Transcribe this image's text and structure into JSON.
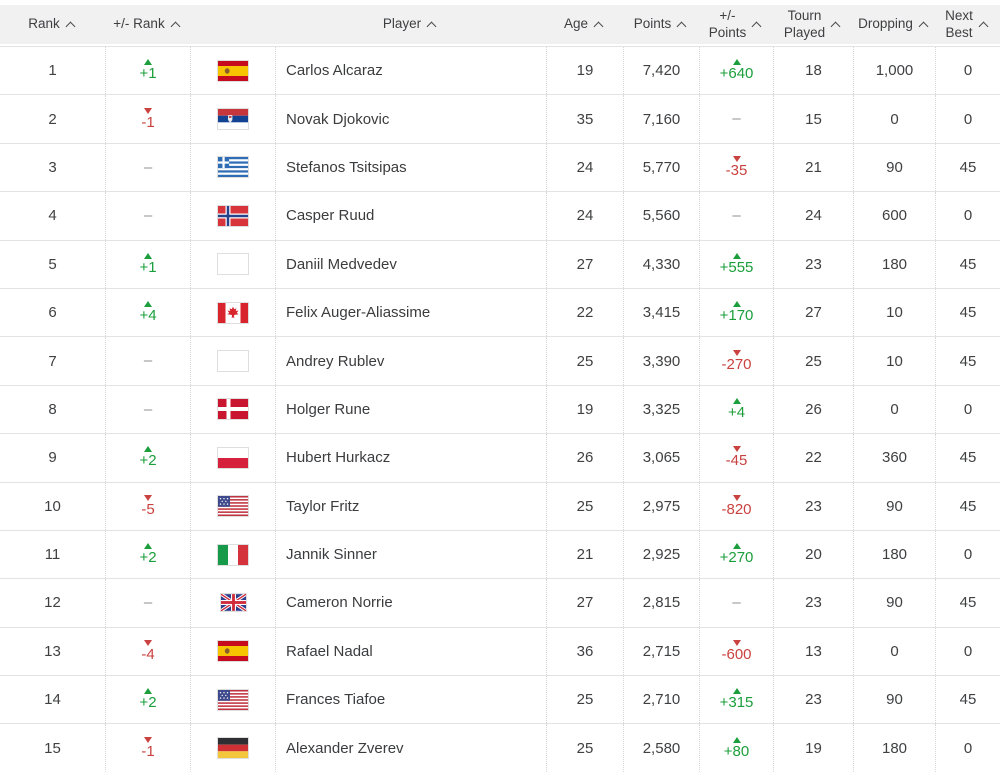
{
  "colors": {
    "green": "#1b9e3b",
    "red": "#c9423f",
    "text": "#3f4042",
    "muted": "#8f8f92",
    "hairline": "#e3e3e5",
    "dotted": "#d7d7da",
    "header_bg": "#f1f1f2",
    "header_text": "#3e3f41"
  },
  "table": {
    "columns": [
      {
        "key": "rank",
        "label": "Rank",
        "col": 1
      },
      {
        "key": "rank_change",
        "label": "+/- Rank",
        "col": 2
      },
      {
        "key": "player",
        "label": "Player",
        "col": 4
      },
      {
        "key": "age",
        "label": "Age",
        "col": 5
      },
      {
        "key": "points",
        "label": "Points",
        "col": 6
      },
      {
        "key": "points_change",
        "label": "+/-\nPoints",
        "col": 7
      },
      {
        "key": "tourn_played",
        "label": "Tourn\nPlayed",
        "col": 8
      },
      {
        "key": "dropping",
        "label": "Dropping",
        "col": 9
      },
      {
        "key": "next_best",
        "label": "Next\nBest",
        "col": 10
      }
    ],
    "rows": [
      {
        "rank": "1",
        "rank_change": {
          "dir": "up",
          "value": "+1"
        },
        "country": "ES",
        "player": "Carlos Alcaraz",
        "age": "19",
        "points": "7,420",
        "points_change": {
          "dir": "up",
          "value": "+640"
        },
        "tourn_played": "18",
        "dropping": "1,000",
        "next_best": "0"
      },
      {
        "rank": "2",
        "rank_change": {
          "dir": "down",
          "value": "-1"
        },
        "country": "RS",
        "player": "Novak Djokovic",
        "age": "35",
        "points": "7,160",
        "points_change": {
          "dir": "none",
          "value": "–"
        },
        "tourn_played": "15",
        "dropping": "0",
        "next_best": "0"
      },
      {
        "rank": "3",
        "rank_change": {
          "dir": "none",
          "value": "–"
        },
        "country": "GR",
        "player": "Stefanos Tsitsipas",
        "age": "24",
        "points": "5,770",
        "points_change": {
          "dir": "down",
          "value": "-35"
        },
        "tourn_played": "21",
        "dropping": "90",
        "next_best": "45"
      },
      {
        "rank": "4",
        "rank_change": {
          "dir": "none",
          "value": "–"
        },
        "country": "NO",
        "player": "Casper Ruud",
        "age": "24",
        "points": "5,560",
        "points_change": {
          "dir": "none",
          "value": "–"
        },
        "tourn_played": "24",
        "dropping": "600",
        "next_best": "0"
      },
      {
        "rank": "5",
        "rank_change": {
          "dir": "up",
          "value": "+1"
        },
        "country": "BLANK",
        "player": "Daniil Medvedev",
        "age": "27",
        "points": "4,330",
        "points_change": {
          "dir": "up",
          "value": "+555"
        },
        "tourn_played": "23",
        "dropping": "180",
        "next_best": "45"
      },
      {
        "rank": "6",
        "rank_change": {
          "dir": "up",
          "value": "+4"
        },
        "country": "CA",
        "player": "Felix Auger-Aliassime",
        "age": "22",
        "points": "3,415",
        "points_change": {
          "dir": "up",
          "value": "+170"
        },
        "tourn_played": "27",
        "dropping": "10",
        "next_best": "45"
      },
      {
        "rank": "7",
        "rank_change": {
          "dir": "none",
          "value": "–"
        },
        "country": "BLANK",
        "player": "Andrey Rublev",
        "age": "25",
        "points": "3,390",
        "points_change": {
          "dir": "down",
          "value": "-270"
        },
        "tourn_played": "25",
        "dropping": "10",
        "next_best": "45"
      },
      {
        "rank": "8",
        "rank_change": {
          "dir": "none",
          "value": "–"
        },
        "country": "DK",
        "player": "Holger Rune",
        "age": "19",
        "points": "3,325",
        "points_change": {
          "dir": "up",
          "value": "+4"
        },
        "tourn_played": "26",
        "dropping": "0",
        "next_best": "0"
      },
      {
        "rank": "9",
        "rank_change": {
          "dir": "up",
          "value": "+2"
        },
        "country": "PL",
        "player": "Hubert Hurkacz",
        "age": "26",
        "points": "3,065",
        "points_change": {
          "dir": "down",
          "value": "-45"
        },
        "tourn_played": "22",
        "dropping": "360",
        "next_best": "45"
      },
      {
        "rank": "10",
        "rank_change": {
          "dir": "down",
          "value": "-5"
        },
        "country": "US",
        "player": "Taylor Fritz",
        "age": "25",
        "points": "2,975",
        "points_change": {
          "dir": "down",
          "value": "-820"
        },
        "tourn_played": "23",
        "dropping": "90",
        "next_best": "45"
      },
      {
        "rank": "11",
        "rank_change": {
          "dir": "up",
          "value": "+2"
        },
        "country": "IT",
        "player": "Jannik Sinner",
        "age": "21",
        "points": "2,925",
        "points_change": {
          "dir": "up",
          "value": "+270"
        },
        "tourn_played": "20",
        "dropping": "180",
        "next_best": "0"
      },
      {
        "rank": "12",
        "rank_change": {
          "dir": "none",
          "value": "–"
        },
        "country": "GB",
        "player": "Cameron Norrie",
        "age": "27",
        "points": "2,815",
        "points_change": {
          "dir": "none",
          "value": "–"
        },
        "tourn_played": "23",
        "dropping": "90",
        "next_best": "45"
      },
      {
        "rank": "13",
        "rank_change": {
          "dir": "down",
          "value": "-4"
        },
        "country": "ES",
        "player": "Rafael Nadal",
        "age": "36",
        "points": "2,715",
        "points_change": {
          "dir": "down",
          "value": "-600"
        },
        "tourn_played": "13",
        "dropping": "0",
        "next_best": "0"
      },
      {
        "rank": "14",
        "rank_change": {
          "dir": "up",
          "value": "+2"
        },
        "country": "US",
        "player": "Frances Tiafoe",
        "age": "25",
        "points": "2,710",
        "points_change": {
          "dir": "up",
          "value": "+315"
        },
        "tourn_played": "23",
        "dropping": "90",
        "next_best": "45"
      },
      {
        "rank": "15",
        "rank_change": {
          "dir": "down",
          "value": "-1"
        },
        "country": "DE",
        "player": "Alexander Zverev",
        "age": "25",
        "points": "2,580",
        "points_change": {
          "dir": "up",
          "value": "+80"
        },
        "tourn_played": "19",
        "dropping": "180",
        "next_best": "0"
      }
    ]
  }
}
